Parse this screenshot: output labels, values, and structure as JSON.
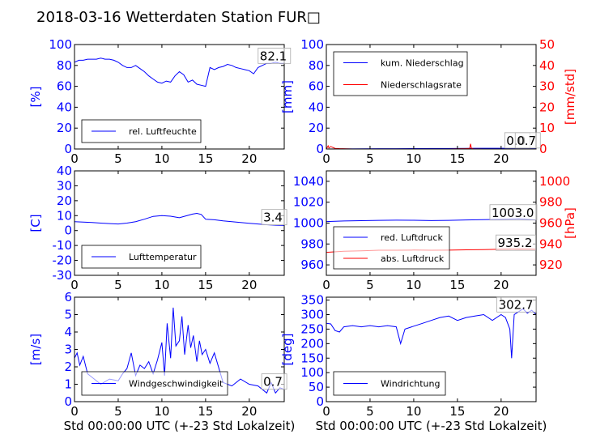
{
  "title": "2018-03-16 Wetterdaten Station FUR□",
  "colors": {
    "blue": "#0000ff",
    "red": "#ff0000",
    "axis": "#000000"
  },
  "chart_data": [
    {
      "id": "humidity",
      "type": "line",
      "xlim": [
        0,
        24
      ],
      "ylim": [
        0,
        100
      ],
      "xticks": [
        0,
        5,
        10,
        15,
        20
      ],
      "yticks": [
        0,
        20,
        40,
        60,
        80,
        100
      ],
      "ylabel": "[%]",
      "xlabel": "",
      "ytick_color": "blue",
      "legend": {
        "placement": "lower-left",
        "entries": [
          {
            "label": "rel. Luftfeuchte",
            "color": "blue"
          }
        ]
      },
      "annotations": [
        {
          "text": "82.1",
          "x": 21.2,
          "y": 85
        }
      ],
      "series": [
        {
          "name": "rel. Luftfeuchte",
          "color": "blue",
          "x": [
            0,
            0.5,
            1,
            1.5,
            2,
            2.5,
            3,
            3.5,
            4,
            4.5,
            5,
            5.5,
            6,
            6.5,
            7,
            7.5,
            8,
            8.5,
            9,
            9.5,
            10,
            10.5,
            11,
            11.5,
            12,
            12.5,
            13,
            13.5,
            14,
            14.5,
            15,
            15.5,
            16,
            16.5,
            17,
            17.5,
            18,
            18.5,
            19,
            19.5,
            20,
            20.5,
            21,
            21.5,
            22,
            22.5,
            23,
            23.5,
            24
          ],
          "y": [
            83,
            85,
            85,
            86,
            86,
            86,
            87,
            86,
            86,
            85,
            83,
            80,
            78,
            78,
            80,
            77,
            74,
            70,
            67,
            64,
            63,
            65,
            64,
            70,
            74,
            71,
            64,
            66,
            62,
            61,
            60,
            78,
            76,
            78,
            79,
            81,
            80,
            78,
            77,
            76,
            75,
            72,
            78,
            80,
            82,
            82,
            83,
            82,
            82
          ]
        }
      ]
    },
    {
      "id": "precip",
      "type": "line",
      "xlim": [
        0,
        24
      ],
      "ylim": [
        0,
        100
      ],
      "ylim2": [
        0,
        50
      ],
      "xticks": [
        0,
        5,
        10,
        15,
        20
      ],
      "yticks": [
        0,
        20,
        40,
        60,
        80,
        100
      ],
      "yticks2": [
        0,
        10,
        20,
        30,
        40,
        50
      ],
      "ylabel": "[mm]",
      "ylabel2": "[mm/std]",
      "xlabel": "",
      "ytick_color": "blue",
      "ytick_color2": "red",
      "legend": {
        "placement": "upper-left",
        "entries": [
          {
            "label": "kum. Niederschlag",
            "color": "blue"
          },
          {
            "label": "Niederschlagsrate",
            "color": "red"
          }
        ]
      },
      "annotations": [
        {
          "text": "0.0",
          "x": 20.6,
          "y": 4
        },
        {
          "text": "0.7",
          "x": 21.8,
          "y": 4
        }
      ],
      "series": [
        {
          "name": "kum. Niederschlag",
          "color": "blue",
          "axis": "left",
          "x": [
            0,
            2,
            4,
            6,
            8,
            10,
            12,
            14,
            16,
            17,
            18,
            20,
            22,
            24
          ],
          "y": [
            0,
            0.1,
            0.2,
            0.3,
            0.3,
            0.4,
            0.5,
            0.5,
            0.6,
            0.7,
            0.7,
            0.7,
            0.7,
            0.7
          ]
        },
        {
          "name": "Niederschlagsrate",
          "color": "red",
          "axis": "right",
          "x": [
            0,
            0.2,
            0.3,
            0.5,
            0.7,
            1.0,
            1.5,
            3,
            5,
            8,
            10,
            12,
            14,
            16,
            16.4,
            16.5,
            16.6,
            16.8,
            18,
            20,
            22,
            24
          ],
          "y": [
            0,
            1.5,
            0.5,
            1.2,
            0.8,
            0.3,
            0.2,
            0,
            0,
            0,
            0,
            0,
            0,
            0.2,
            0.3,
            2.5,
            0.4,
            0.1,
            0,
            0,
            0,
            0
          ]
        }
      ]
    },
    {
      "id": "temperature",
      "type": "line",
      "xlim": [
        0,
        24
      ],
      "ylim": [
        -30,
        40
      ],
      "xticks": [
        0,
        5,
        10,
        15,
        20
      ],
      "yticks": [
        -30,
        -20,
        -10,
        0,
        10,
        20,
        30,
        40
      ],
      "ylabel": "[C]",
      "xlabel": "",
      "ytick_color": "blue",
      "legend": {
        "placement": "lower-left",
        "entries": [
          {
            "label": "Lufttemperatur",
            "color": "blue"
          }
        ]
      },
      "annotations": [
        {
          "text": "3.4",
          "x": 21.6,
          "y": 6
        }
      ],
      "series": [
        {
          "name": "Lufttemperatur",
          "color": "blue",
          "x": [
            0,
            1,
            2,
            3,
            4,
            5,
            6,
            7,
            8,
            9,
            10,
            11,
            12,
            13,
            13.5,
            14,
            14.5,
            15,
            16,
            17,
            18,
            19,
            20,
            21,
            22,
            23,
            24
          ],
          "y": [
            6,
            5.7,
            5.4,
            5,
            4.7,
            4.4,
            5,
            6,
            7.6,
            9.5,
            10,
            9.6,
            8.6,
            10.2,
            11,
            11.5,
            10.8,
            7.6,
            7.2,
            6.5,
            6,
            5.4,
            4.9,
            4.4,
            3.9,
            3.6,
            3.4
          ]
        }
      ]
    },
    {
      "id": "pressure",
      "type": "line",
      "xlim": [
        0,
        24
      ],
      "ylim": [
        950,
        1050
      ],
      "ylim2": [
        910,
        1010
      ],
      "xticks": [
        0,
        5,
        10,
        15,
        20
      ],
      "yticks": [
        960,
        980,
        1000,
        1020,
        1040
      ],
      "yticks2": [
        920,
        940,
        960,
        980,
        1000
      ],
      "ylabel": "",
      "ylabel2": "[hPa]",
      "xlabel": "",
      "ytick_color": "blue",
      "ytick_color2": "red",
      "legend": {
        "placement": "lower-left",
        "entries": [
          {
            "label": "red. Luftdruck",
            "color": "blue"
          },
          {
            "label": "abs. Luftdruck",
            "color": "red"
          }
        ]
      },
      "annotations": [
        {
          "text": "1003.0",
          "x": 18.9,
          "y": 1006
        },
        {
          "text": "935.2",
          "x": 19.6,
          "y": 977
        }
      ],
      "series": [
        {
          "name": "red. Luftdruck",
          "color": "blue",
          "axis": "left",
          "x": [
            0,
            2,
            4,
            6,
            8,
            10,
            12,
            14,
            16,
            18,
            20,
            22,
            24
          ],
          "y": [
            1001.5,
            1002,
            1002.3,
            1002.6,
            1002.8,
            1002.7,
            1002.4,
            1002.6,
            1003,
            1003.3,
            1003.6,
            1004,
            1003
          ]
        },
        {
          "name": "abs. Luftdruck",
          "color": "red",
          "axis": "right",
          "x": [
            0,
            2,
            4,
            6,
            8,
            10,
            12,
            14,
            16,
            18,
            20,
            22,
            24
          ],
          "y": [
            932,
            933,
            933.5,
            934,
            934,
            934.2,
            934,
            934.1,
            934.4,
            934.6,
            935,
            935.2,
            935
          ]
        }
      ]
    },
    {
      "id": "windspeed",
      "type": "line",
      "xlim": [
        0,
        24
      ],
      "ylim": [
        0,
        6
      ],
      "xticks": [
        0,
        5,
        10,
        15,
        20
      ],
      "yticks": [
        0,
        1,
        2,
        3,
        4,
        5,
        6
      ],
      "ylabel": "[m/s]",
      "xlabel": "Std 00:00:00 UTC (+-23 Std Lokalzeit)",
      "ytick_color": "blue",
      "legend": {
        "placement": "lower-left",
        "entries": [
          {
            "label": "Windgeschwindigkeit",
            "color": "blue"
          }
        ]
      },
      "annotations": [
        {
          "text": "0.7",
          "x": 21.6,
          "y": 0.9
        }
      ],
      "series": [
        {
          "name": "Windgeschwindigkeit",
          "color": "blue",
          "x": [
            0,
            0.3,
            0.6,
            1,
            1.5,
            2,
            3,
            4,
            5,
            5.5,
            6,
            6.5,
            7,
            7.5,
            8,
            8.5,
            9,
            9.5,
            10,
            10.3,
            10.6,
            11,
            11.3,
            11.6,
            12,
            12.3,
            12.6,
            13,
            13.3,
            13.6,
            14,
            14.3,
            14.6,
            15,
            15.5,
            16,
            17,
            18,
            19,
            20,
            21,
            22,
            22.5,
            23,
            23.5,
            24
          ],
          "y": [
            2.5,
            2.8,
            2.1,
            2.6,
            1.6,
            1.4,
            1,
            1.3,
            1.2,
            1.6,
            1.9,
            2.8,
            1.5,
            2.1,
            1.9,
            2.3,
            1.6,
            2.4,
            3.4,
            1.5,
            4.5,
            2.5,
            5.4,
            3.2,
            3.5,
            4.9,
            2.7,
            4.4,
            3.1,
            3.8,
            2.3,
            3.5,
            2.7,
            3,
            2.2,
            2.8,
            1.1,
            0.9,
            1.3,
            1,
            0.9,
            0.5,
            1.1,
            0.5,
            0.8,
            0.7
          ]
        }
      ]
    },
    {
      "id": "winddir",
      "type": "line",
      "xlim": [
        0,
        24
      ],
      "ylim": [
        0,
        360
      ],
      "xticks": [
        0,
        5,
        10,
        15,
        20
      ],
      "yticks": [
        0,
        50,
        100,
        150,
        200,
        250,
        300,
        350
      ],
      "ylabel": "[deg]",
      "xlabel": "Std 00:00:00 UTC (+-23 Std Lokalzeit)",
      "ytick_color": "blue",
      "legend": {
        "placement": "lower-left",
        "entries": [
          {
            "label": "Windrichtung",
            "color": "blue"
          }
        ]
      },
      "annotations": [
        {
          "text": "302.7",
          "x": 19.7,
          "y": 320
        }
      ],
      "series": [
        {
          "name": "Windrichtung",
          "color": "blue",
          "x": [
            0,
            0.5,
            1,
            1.5,
            2,
            3,
            4,
            5,
            6,
            7,
            8,
            8.5,
            9,
            10,
            11,
            12,
            13,
            14,
            15,
            16,
            17,
            18,
            19,
            20,
            20.5,
            21,
            21.2,
            21.5,
            22,
            22.5,
            23,
            23.5,
            24
          ],
          "y": [
            270,
            268,
            245,
            240,
            258,
            262,
            258,
            262,
            258,
            262,
            258,
            200,
            250,
            260,
            270,
            280,
            290,
            295,
            280,
            290,
            295,
            300,
            280,
            300,
            290,
            250,
            150,
            300,
            310,
            320,
            305,
            315,
            300
          ]
        }
      ]
    }
  ]
}
